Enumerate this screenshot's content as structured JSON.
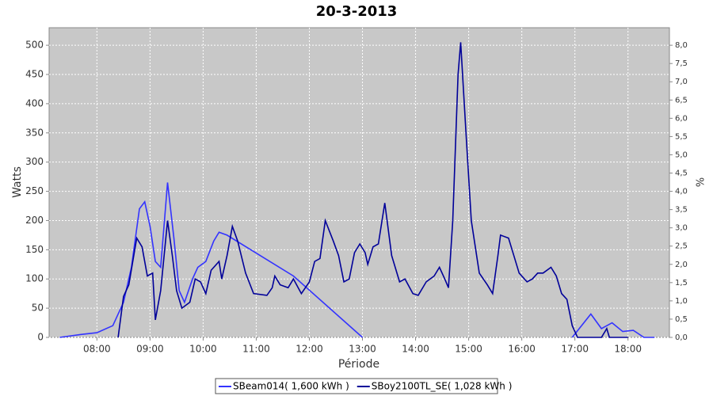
{
  "chart_data": {
    "type": "line",
    "title": "20-3-2013",
    "x_label": "Période",
    "y_label": "Watts",
    "y2_label": "%",
    "xlim": [
      7.1,
      18.78
    ],
    "xticks": [
      {
        "value": 8,
        "label": "08:00"
      },
      {
        "value": 9,
        "label": "09:00"
      },
      {
        "value": 10,
        "label": "10:00"
      },
      {
        "value": 11,
        "label": "11:00"
      },
      {
        "value": 12,
        "label": "12:00"
      },
      {
        "value": 13,
        "label": "13:00"
      },
      {
        "value": 14,
        "label": "14:00"
      },
      {
        "value": 15,
        "label": "15:00"
      },
      {
        "value": 16,
        "label": "16:00"
      },
      {
        "value": 17,
        "label": "17:00"
      },
      {
        "value": 18,
        "label": "18:00"
      }
    ],
    "ylim": [
      0,
      530
    ],
    "yticks": [
      0,
      50,
      100,
      150,
      200,
      250,
      300,
      350,
      400,
      450,
      500
    ],
    "y2lim": [
      0,
      8.48
    ],
    "y2ticks": [
      {
        "value": 0,
        "label": "0,0"
      },
      {
        "value": 0.5,
        "label": "0,5"
      },
      {
        "value": 1,
        "label": "1,0"
      },
      {
        "value": 1.5,
        "label": "1,5"
      },
      {
        "value": 2,
        "label": "2,0"
      },
      {
        "value": 2.5,
        "label": "2,5"
      },
      {
        "value": 3,
        "label": "3,0"
      },
      {
        "value": 3.5,
        "label": "3,5"
      },
      {
        "value": 4,
        "label": "4,0"
      },
      {
        "value": 4.5,
        "label": "4,5"
      },
      {
        "value": 5,
        "label": "5,0"
      },
      {
        "value": 5.5,
        "label": "5,5"
      },
      {
        "value": 6,
        "label": "6,0"
      },
      {
        "value": 6.5,
        "label": "6,5"
      },
      {
        "value": 7,
        "label": "7,0"
      },
      {
        "value": 7.5,
        "label": "7,5"
      },
      {
        "value": 8,
        "label": "8,0"
      }
    ],
    "grid": true,
    "legend": "bottom",
    "series": [
      {
        "name": "SBeam014( 1,600 kWh )",
        "color": "#3333ff",
        "x": [
          7.3,
          7.7,
          8.0,
          8.3,
          8.5,
          8.65,
          8.8,
          8.9,
          9.0,
          9.1,
          9.2,
          9.33,
          9.45,
          9.55,
          9.65,
          9.8,
          9.9,
          10.05,
          10.2,
          10.3,
          10.45,
          11.7,
          13.0,
          13.5,
          16.95,
          17.3,
          17.5,
          17.7,
          17.9,
          18.1,
          18.3,
          18.5
        ],
        "values": [
          0,
          5,
          8,
          20,
          60,
          120,
          220,
          232,
          190,
          130,
          120,
          265,
          170,
          80,
          60,
          100,
          120,
          130,
          165,
          180,
          175,
          105,
          0,
          null,
          0,
          40,
          15,
          25,
          10,
          12,
          0,
          0
        ]
      },
      {
        "name": "SBoy2100TL_SE( 1,028 kWh )",
        "color": "#000099",
        "x": [
          8.4,
          8.5,
          8.6,
          8.75,
          8.85,
          8.95,
          9.05,
          9.1,
          9.2,
          9.33,
          9.42,
          9.5,
          9.6,
          9.75,
          9.85,
          9.95,
          10.05,
          10.15,
          10.3,
          10.35,
          10.45,
          10.55,
          10.65,
          10.8,
          10.95,
          11.2,
          11.3,
          11.35,
          11.45,
          11.6,
          11.7,
          11.85,
          12.0,
          12.1,
          12.2,
          12.3,
          12.45,
          12.55,
          12.65,
          12.75,
          12.85,
          12.95,
          13.05,
          13.1,
          13.2,
          13.3,
          13.42,
          13.55,
          13.7,
          13.8,
          13.95,
          14.05,
          14.2,
          14.35,
          14.45,
          14.55,
          14.62,
          14.7,
          14.8,
          14.85,
          14.95,
          15.05,
          15.2,
          15.35,
          15.45,
          15.55,
          15.6,
          15.75,
          15.85,
          15.95,
          16.1,
          16.2,
          16.3,
          16.4,
          16.55,
          16.65,
          16.75,
          16.85,
          16.95,
          17.05,
          17.5,
          17.6,
          17.65,
          18.0
        ],
        "values": [
          0,
          70,
          90,
          170,
          155,
          105,
          110,
          30,
          80,
          200,
          140,
          80,
          50,
          60,
          100,
          95,
          75,
          115,
          130,
          100,
          140,
          190,
          165,
          110,
          75,
          72,
          85,
          105,
          90,
          85,
          100,
          75,
          95,
          130,
          135,
          200,
          165,
          140,
          95,
          100,
          145,
          160,
          145,
          125,
          155,
          160,
          230,
          140,
          95,
          100,
          75,
          72,
          95,
          105,
          120,
          100,
          85,
          200,
          450,
          505,
          350,
          200,
          110,
          90,
          75,
          140,
          175,
          170,
          140,
          110,
          95,
          100,
          110,
          110,
          120,
          105,
          75,
          65,
          20,
          0,
          0,
          15,
          0,
          0
        ]
      }
    ]
  }
}
